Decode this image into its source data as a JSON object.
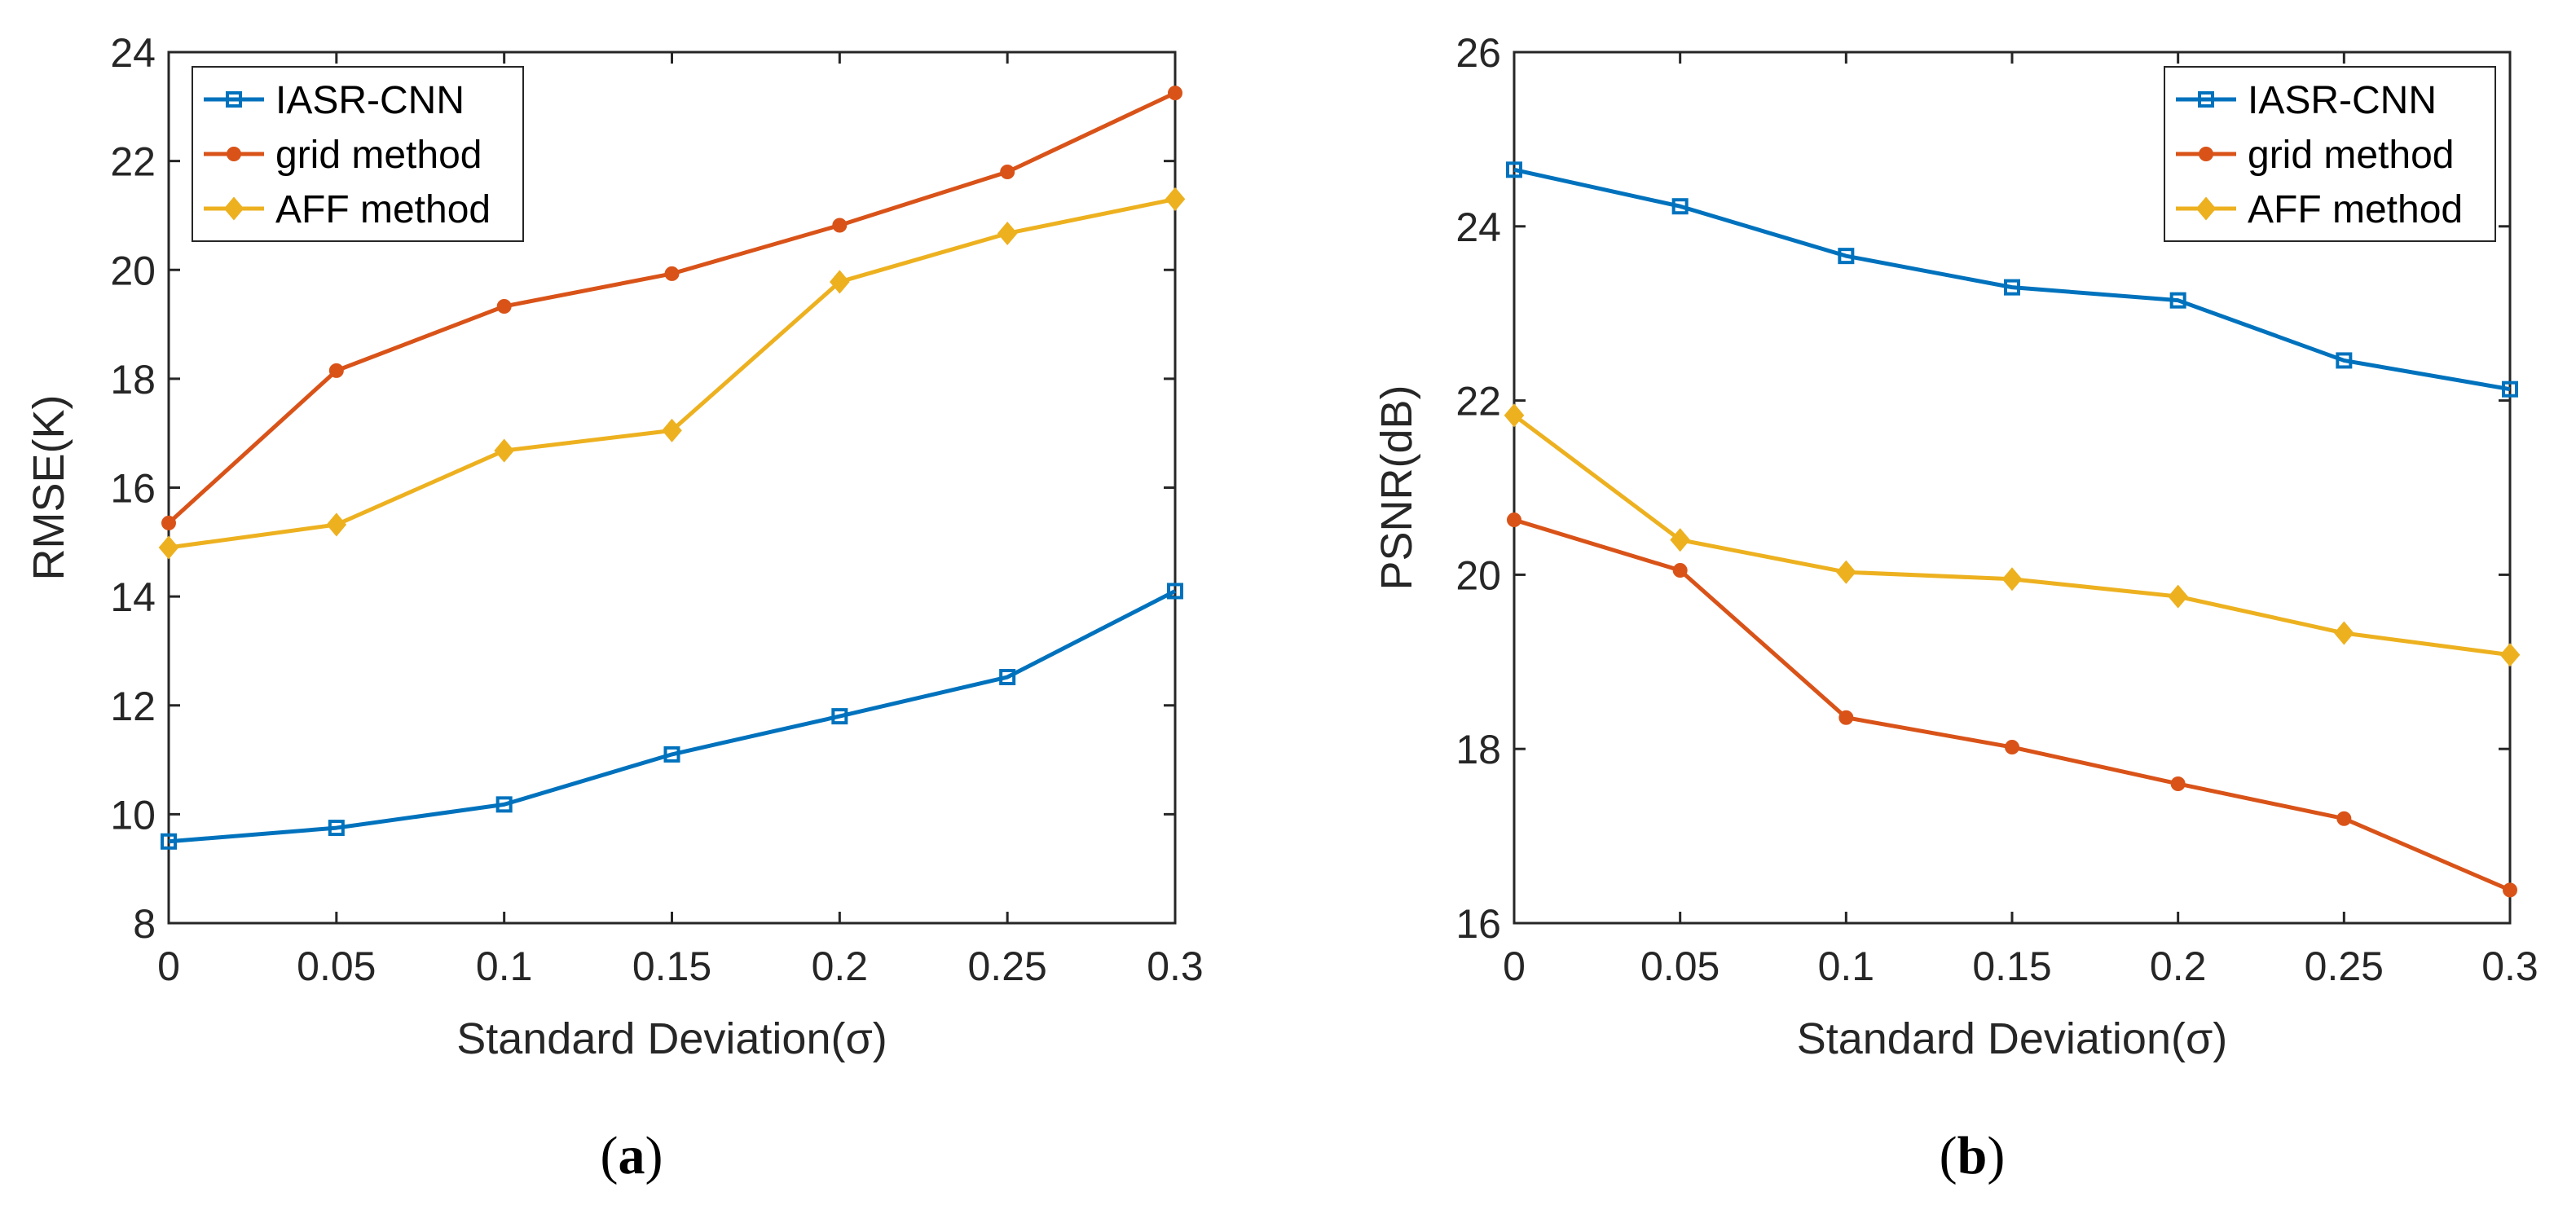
{
  "chart_data": [
    {
      "type": "line",
      "panel": "a",
      "caption": "a",
      "xlabel": "Standard Deviation(σ)",
      "ylabel": "RMSE(K)",
      "x": [
        0,
        0.05,
        0.1,
        0.15,
        0.2,
        0.25,
        0.3
      ],
      "xticks": [
        "0",
        "0.05",
        "0.1",
        "0.15",
        "0.2",
        "0.25",
        "0.3"
      ],
      "xlim": [
        0,
        0.3
      ],
      "ylim": [
        8,
        24
      ],
      "yticks": [
        8,
        10,
        12,
        14,
        16,
        18,
        20,
        22,
        24
      ],
      "legend_position": "top-left",
      "series": [
        {
          "name": "IASR-CNN",
          "color": "#0072BD",
          "marker": "square",
          "values": [
            9.5,
            9.75,
            10.18,
            11.1,
            11.8,
            12.52,
            14.1
          ]
        },
        {
          "name": "grid method",
          "color": "#D95319",
          "marker": "circle",
          "values": [
            15.35,
            18.15,
            19.33,
            19.93,
            20.82,
            21.8,
            23.25
          ]
        },
        {
          "name": "AFF method",
          "color": "#EDB120",
          "marker": "diamond",
          "values": [
            14.9,
            15.32,
            16.68,
            17.05,
            19.78,
            20.67,
            21.3
          ]
        }
      ]
    },
    {
      "type": "line",
      "panel": "b",
      "caption": "b",
      "xlabel": "Standard Deviation(σ)",
      "ylabel": "PSNR(dB)",
      "x": [
        0,
        0.05,
        0.1,
        0.15,
        0.2,
        0.25,
        0.3
      ],
      "xticks": [
        "0",
        "0.05",
        "0.1",
        "0.15",
        "0.2",
        "0.25",
        "0.3"
      ],
      "xlim": [
        0,
        0.3
      ],
      "ylim": [
        16,
        26
      ],
      "yticks": [
        16,
        18,
        20,
        22,
        24,
        26
      ],
      "legend_position": "top-right",
      "series": [
        {
          "name": "IASR-CNN",
          "color": "#0072BD",
          "marker": "square",
          "values": [
            24.65,
            24.23,
            23.66,
            23.3,
            23.15,
            22.46,
            22.13
          ]
        },
        {
          "name": "grid method",
          "color": "#D95319",
          "marker": "circle",
          "values": [
            20.63,
            20.05,
            18.36,
            18.02,
            17.6,
            17.2,
            16.38
          ]
        },
        {
          "name": "AFF method",
          "color": "#EDB120",
          "marker": "diamond",
          "values": [
            21.83,
            20.4,
            20.03,
            19.95,
            19.75,
            19.33,
            19.08
          ]
        }
      ]
    }
  ]
}
